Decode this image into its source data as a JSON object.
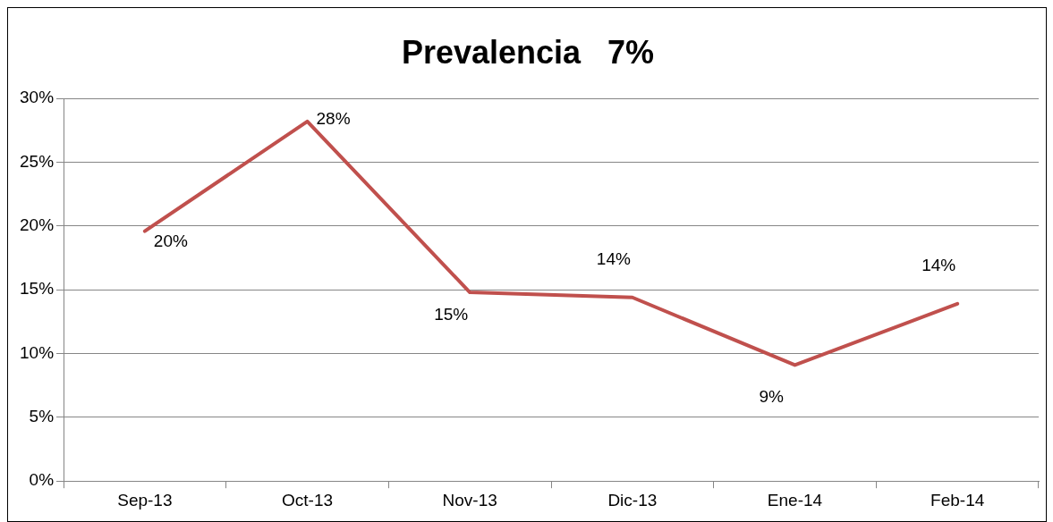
{
  "chart_data": {
    "type": "line",
    "title": "Prevalencia   7%",
    "categories": [
      "Sep-13",
      "Oct-13",
      "Nov-13",
      "Dic-13",
      "Ene-14",
      "Feb-14"
    ],
    "series": [
      {
        "color": "#c0504d",
        "values": [
          19.6,
          28.2,
          14.8,
          14.4,
          9.1,
          13.9
        ],
        "value_labels": [
          "20%",
          "28%",
          "15%",
          "14%",
          "9%",
          "14%"
        ]
      }
    ],
    "ylim": [
      0,
      30
    ],
    "yticks": [
      {
        "value": 0,
        "label": "0%"
      },
      {
        "value": 5,
        "label": "5%"
      },
      {
        "value": 10,
        "label": "10%"
      },
      {
        "value": 15,
        "label": "15%"
      },
      {
        "value": 20,
        "label": "20%"
      },
      {
        "value": 25,
        "label": "25%"
      },
      {
        "value": 30,
        "label": "30%"
      }
    ],
    "grid": "y",
    "legend": false,
    "marker": "none",
    "line_style": "solid"
  }
}
